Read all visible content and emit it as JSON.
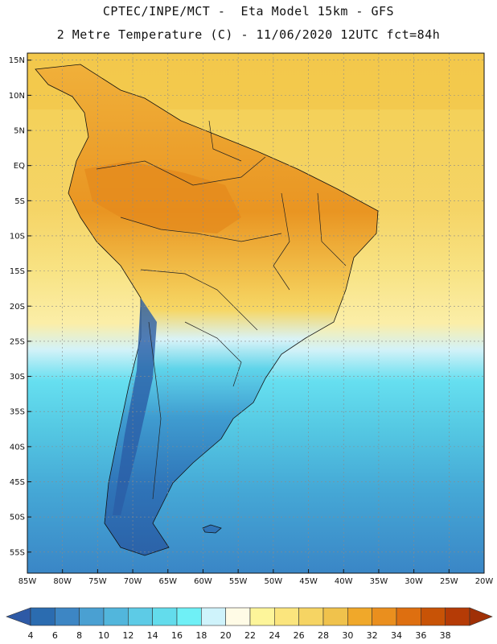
{
  "header": {
    "line1": "CPTEC/INPE/MCT -  Eta Model 15km - GFS",
    "line2": "2 Metre Temperature (C) - 11/06/2020 12UTC fct=84h"
  },
  "map": {
    "lat_labels": [
      "15N",
      "10N",
      "5N",
      "EQ",
      "5S",
      "10S",
      "15S",
      "20S",
      "25S",
      "30S",
      "35S",
      "40S",
      "45S",
      "50S",
      "55S"
    ],
    "lon_labels": [
      "85W",
      "80W",
      "75W",
      "70W",
      "65W",
      "60W",
      "55W",
      "50W",
      "45W",
      "40W",
      "35W",
      "30W",
      "25W",
      "20W"
    ],
    "lat_range": [
      -58,
      16
    ],
    "lon_range": [
      -85,
      -20
    ]
  },
  "colorbar": {
    "labels": [
      "4",
      "6",
      "8",
      "10",
      "12",
      "14",
      "16",
      "18",
      "20",
      "22",
      "24",
      "26",
      "28",
      "30",
      "32",
      "34",
      "36",
      "38"
    ],
    "colors": [
      "#2b6cb0",
      "#3d86c4",
      "#4aa0d2",
      "#52b6dc",
      "#5dcbe6",
      "#63dcec",
      "#6ff0f6",
      "#cff3fb",
      "#fffbe6",
      "#fdf59a",
      "#fbe57d",
      "#f6d463",
      "#f0c24c",
      "#f0a82a",
      "#ea8f1e",
      "#de6f10",
      "#c85306",
      "#b53b06"
    ],
    "under_color": "#2e5aa6",
    "over_color": "#a03006"
  }
}
